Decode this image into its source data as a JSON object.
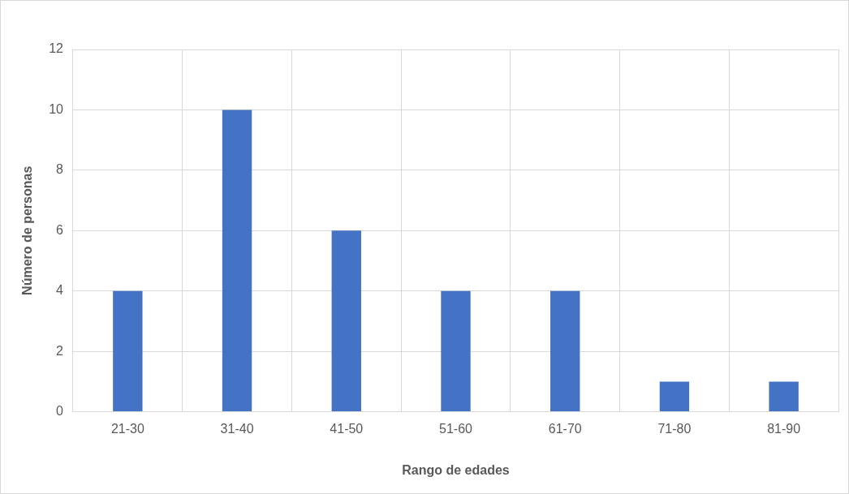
{
  "chart_data": {
    "type": "bar",
    "xlabel": "Rango de edades",
    "ylabel": "Número de personas",
    "categories": [
      "21-30",
      "31-40",
      "41-50",
      "51-60",
      "61-70",
      "71-80",
      "81-90"
    ],
    "values": [
      4,
      10,
      6,
      4,
      4,
      1,
      1
    ],
    "color": "#4472c4",
    "ylim": [
      0,
      12
    ],
    "yticks": [
      0,
      2,
      4,
      6,
      8,
      10,
      12
    ],
    "grid": true,
    "legend": false
  }
}
